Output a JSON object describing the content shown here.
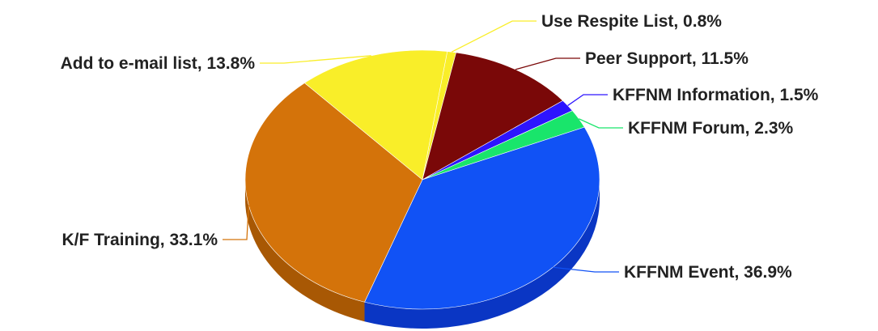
{
  "chart_data": {
    "type": "pie",
    "title": "",
    "slices": [
      {
        "label": "Use Respite List, 0.8%",
        "value": 0.8,
        "color": "#f9ee29",
        "side_color": "#c9bd16"
      },
      {
        "label": "Peer Support, 11.5%",
        "value": 11.5,
        "color": "#7a0808",
        "side_color": "#560404"
      },
      {
        "label": "KFFNM Information, 1.5%",
        "value": 1.5,
        "color": "#2d14ff",
        "side_color": "#1a08b8"
      },
      {
        "label": "KFFNM Forum, 2.3%",
        "value": 2.3,
        "color": "#19e56b",
        "side_color": "#0fa84c"
      },
      {
        "label": "KFFNM Event, 36.9%",
        "value": 36.9,
        "color": "#1152f5",
        "side_color": "#0a36c4"
      },
      {
        "label": "K/F Training, 33.1%",
        "value": 33.1,
        "color": "#d4730a",
        "side_color": "#a85804"
      },
      {
        "label": "Add to e-mail list, 13.8%",
        "value": 13.8,
        "color": "#f9ee29",
        "side_color": "#c9bd16"
      }
    ],
    "legend": "none"
  }
}
